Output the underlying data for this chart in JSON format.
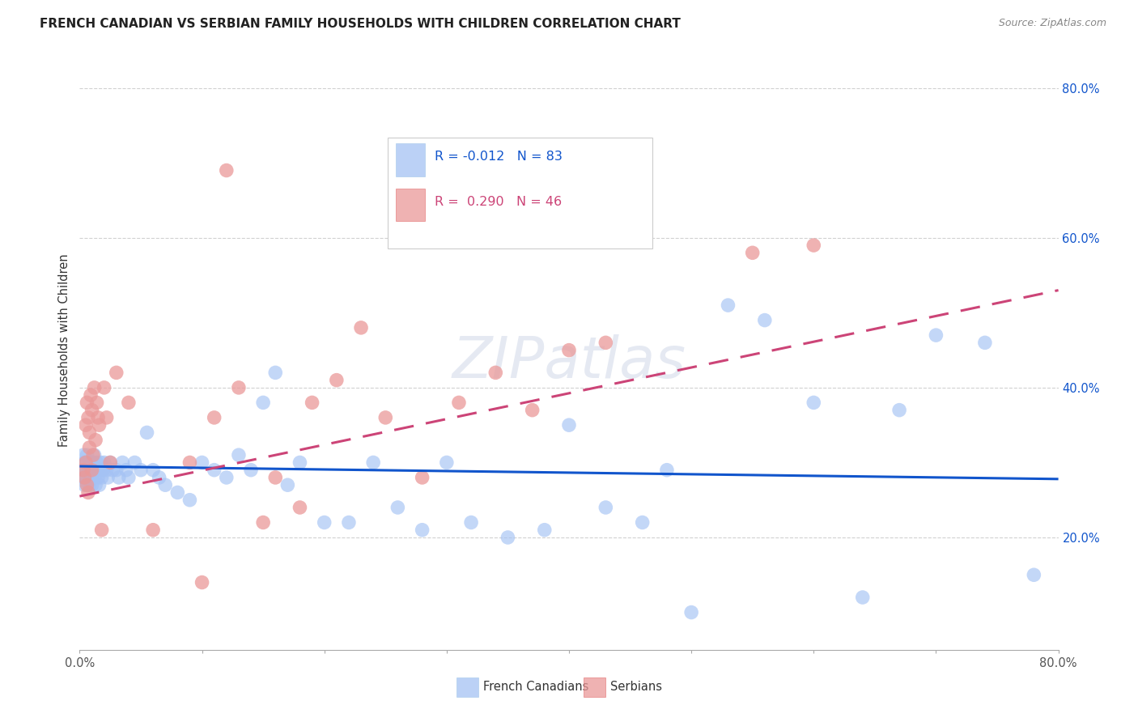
{
  "title": "FRENCH CANADIAN VS SERBIAN FAMILY HOUSEHOLDS WITH CHILDREN CORRELATION CHART",
  "source": "Source: ZipAtlas.com",
  "ylabel": "Family Households with Children",
  "xlim": [
    0.0,
    0.8
  ],
  "ylim": [
    0.05,
    0.85
  ],
  "ytick_values": [
    0.2,
    0.4,
    0.6,
    0.8
  ],
  "xtick_values": [
    0.0,
    0.1,
    0.2,
    0.3,
    0.4,
    0.5,
    0.6,
    0.7,
    0.8
  ],
  "legend1_label": "French Canadians",
  "legend2_label": "Serbians",
  "R1": -0.012,
  "N1": 83,
  "R2": 0.29,
  "N2": 46,
  "blue_color": "#a4c2f4",
  "pink_color": "#ea9999",
  "blue_line_color": "#1155cc",
  "pink_line_color": "#cc4477",
  "watermark": "ZIPatlas",
  "title_fontsize": 11,
  "source_fontsize": 9,
  "blue_x": [
    0.002,
    0.003,
    0.003,
    0.004,
    0.004,
    0.005,
    0.005,
    0.005,
    0.006,
    0.006,
    0.007,
    0.007,
    0.008,
    0.008,
    0.008,
    0.009,
    0.009,
    0.01,
    0.01,
    0.01,
    0.011,
    0.011,
    0.012,
    0.012,
    0.013,
    0.013,
    0.014,
    0.015,
    0.015,
    0.016,
    0.017,
    0.018,
    0.018,
    0.019,
    0.02,
    0.022,
    0.023,
    0.025,
    0.027,
    0.03,
    0.032,
    0.035,
    0.038,
    0.04,
    0.045,
    0.05,
    0.055,
    0.06,
    0.065,
    0.07,
    0.08,
    0.09,
    0.1,
    0.11,
    0.12,
    0.13,
    0.14,
    0.15,
    0.16,
    0.17,
    0.18,
    0.2,
    0.22,
    0.24,
    0.26,
    0.28,
    0.3,
    0.32,
    0.35,
    0.38,
    0.4,
    0.43,
    0.46,
    0.48,
    0.5,
    0.53,
    0.56,
    0.6,
    0.64,
    0.67,
    0.7,
    0.74,
    0.78
  ],
  "blue_y": [
    0.29,
    0.28,
    0.31,
    0.27,
    0.3,
    0.29,
    0.28,
    0.3,
    0.27,
    0.31,
    0.29,
    0.28,
    0.3,
    0.27,
    0.29,
    0.28,
    0.3,
    0.29,
    0.28,
    0.27,
    0.3,
    0.29,
    0.28,
    0.31,
    0.29,
    0.27,
    0.3,
    0.28,
    0.29,
    0.27,
    0.3,
    0.29,
    0.28,
    0.29,
    0.3,
    0.29,
    0.28,
    0.3,
    0.29,
    0.29,
    0.28,
    0.3,
    0.29,
    0.28,
    0.3,
    0.29,
    0.34,
    0.29,
    0.28,
    0.27,
    0.26,
    0.25,
    0.3,
    0.29,
    0.28,
    0.31,
    0.29,
    0.38,
    0.42,
    0.27,
    0.3,
    0.22,
    0.22,
    0.3,
    0.24,
    0.21,
    0.3,
    0.22,
    0.2,
    0.21,
    0.35,
    0.24,
    0.22,
    0.29,
    0.1,
    0.51,
    0.49,
    0.38,
    0.12,
    0.37,
    0.47,
    0.46,
    0.15
  ],
  "pink_x": [
    0.003,
    0.004,
    0.005,
    0.005,
    0.006,
    0.006,
    0.007,
    0.007,
    0.008,
    0.008,
    0.009,
    0.01,
    0.01,
    0.011,
    0.012,
    0.013,
    0.014,
    0.015,
    0.016,
    0.018,
    0.02,
    0.022,
    0.025,
    0.03,
    0.04,
    0.06,
    0.09,
    0.1,
    0.11,
    0.12,
    0.13,
    0.15,
    0.16,
    0.18,
    0.19,
    0.21,
    0.23,
    0.25,
    0.28,
    0.31,
    0.34,
    0.37,
    0.4,
    0.43,
    0.55,
    0.6
  ],
  "pink_y": [
    0.29,
    0.28,
    0.3,
    0.35,
    0.27,
    0.38,
    0.36,
    0.26,
    0.34,
    0.32,
    0.39,
    0.29,
    0.37,
    0.31,
    0.4,
    0.33,
    0.38,
    0.36,
    0.35,
    0.21,
    0.4,
    0.36,
    0.3,
    0.42,
    0.38,
    0.21,
    0.3,
    0.14,
    0.36,
    0.69,
    0.4,
    0.22,
    0.28,
    0.24,
    0.38,
    0.41,
    0.48,
    0.36,
    0.28,
    0.38,
    0.42,
    0.37,
    0.45,
    0.46,
    0.58,
    0.59
  ],
  "blue_trend_x0": 0.0,
  "blue_trend_x1": 0.8,
  "blue_trend_y0": 0.295,
  "blue_trend_y1": 0.278,
  "pink_trend_x0": 0.0,
  "pink_trend_x1": 0.8,
  "pink_trend_y0": 0.255,
  "pink_trend_y1": 0.53
}
